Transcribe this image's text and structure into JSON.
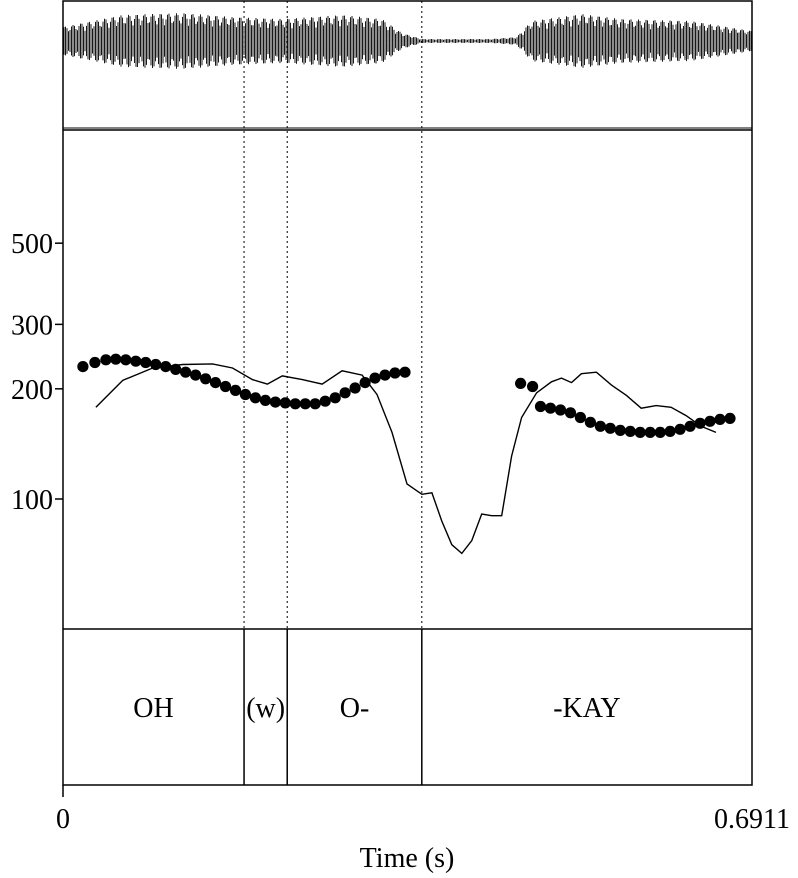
{
  "chart_data": {
    "type": "line",
    "xlabel": "Time (s)",
    "xlim": [
      0,
      0.6911
    ],
    "x_tick_labels": [
      "0",
      "0.6911"
    ],
    "yscale": "log",
    "ylim": [
      56,
      900
    ],
    "y_ticks": [
      100,
      200,
      300,
      500
    ],
    "y_tick_labels": [
      "100",
      "200",
      "300",
      "500"
    ],
    "grid": false,
    "segments": [
      {
        "label": "OH",
        "start": 0,
        "end": 0.1816
      },
      {
        "label": "(w)",
        "start": 0.1816,
        "end": 0.2249
      },
      {
        "label": "O-",
        "start": 0.2249,
        "end": 0.3599
      },
      {
        "label": "-KAY",
        "start": 0.3599,
        "end": 0.6911
      }
    ],
    "series": [
      {
        "style": "line",
        "points": [
          [
            0.033,
            178
          ],
          [
            0.06,
            211
          ],
          [
            0.09,
            228
          ],
          [
            0.12,
            233
          ],
          [
            0.15,
            234
          ],
          [
            0.17,
            228
          ],
          [
            0.19,
            212
          ],
          [
            0.205,
            206
          ],
          [
            0.22,
            217
          ],
          [
            0.24,
            212
          ],
          [
            0.26,
            206
          ],
          [
            0.28,
            224
          ],
          [
            0.3,
            218
          ],
          [
            0.315,
            193
          ],
          [
            0.33,
            152
          ],
          [
            0.345,
            110
          ],
          [
            0.36,
            103
          ],
          [
            0.37,
            104
          ],
          [
            0.38,
            87
          ],
          [
            0.39,
            75
          ],
          [
            0.4,
            71
          ],
          [
            0.41,
            77
          ],
          [
            0.42,
            91
          ],
          [
            0.43,
            90
          ],
          [
            0.44,
            90
          ],
          [
            0.45,
            131
          ],
          [
            0.46,
            167
          ],
          [
            0.475,
            195
          ],
          [
            0.49,
            209
          ],
          [
            0.5,
            214
          ],
          [
            0.51,
            208
          ],
          [
            0.52,
            220
          ],
          [
            0.535,
            222
          ],
          [
            0.55,
            205
          ],
          [
            0.565,
            192
          ],
          [
            0.58,
            177
          ],
          [
            0.595,
            180
          ],
          [
            0.61,
            178
          ],
          [
            0.625,
            169
          ],
          [
            0.64,
            158
          ],
          [
            0.655,
            152
          ]
        ]
      },
      {
        "style": "dots",
        "points": [
          [
            0.02,
            230
          ],
          [
            0.032,
            236
          ],
          [
            0.043,
            240
          ],
          [
            0.053,
            241
          ],
          [
            0.063,
            240
          ],
          [
            0.073,
            238
          ],
          [
            0.083,
            236
          ],
          [
            0.093,
            233
          ],
          [
            0.103,
            230
          ],
          [
            0.113,
            226
          ],
          [
            0.123,
            222
          ],
          [
            0.133,
            218
          ],
          [
            0.143,
            213
          ],
          [
            0.153,
            208
          ],
          [
            0.163,
            203
          ],
          [
            0.173,
            198
          ],
          [
            0.183,
            193
          ],
          [
            0.193,
            189
          ],
          [
            0.203,
            186
          ],
          [
            0.213,
            184
          ],
          [
            0.223,
            183
          ],
          [
            0.233,
            182
          ],
          [
            0.243,
            182
          ],
          [
            0.253,
            182
          ],
          [
            0.263,
            185
          ],
          [
            0.273,
            189
          ],
          [
            0.283,
            195
          ],
          [
            0.293,
            201
          ],
          [
            0.303,
            208
          ],
          [
            0.313,
            214
          ],
          [
            0.323,
            218
          ],
          [
            0.333,
            221
          ],
          [
            0.343,
            222
          ],
          [
            0.459,
            207
          ],
          [
            0.471,
            203
          ],
          [
            0.479,
            179
          ],
          [
            0.489,
            177
          ],
          [
            0.499,
            175
          ],
          [
            0.509,
            172
          ],
          [
            0.519,
            167
          ],
          [
            0.529,
            162
          ],
          [
            0.539,
            158
          ],
          [
            0.549,
            156
          ],
          [
            0.559,
            154
          ],
          [
            0.569,
            153
          ],
          [
            0.579,
            152
          ],
          [
            0.589,
            152
          ],
          [
            0.599,
            152
          ],
          [
            0.609,
            153
          ],
          [
            0.619,
            155
          ],
          [
            0.629,
            158
          ],
          [
            0.639,
            161
          ],
          [
            0.649,
            163
          ],
          [
            0.659,
            165
          ],
          [
            0.669,
            166
          ]
        ]
      }
    ]
  }
}
